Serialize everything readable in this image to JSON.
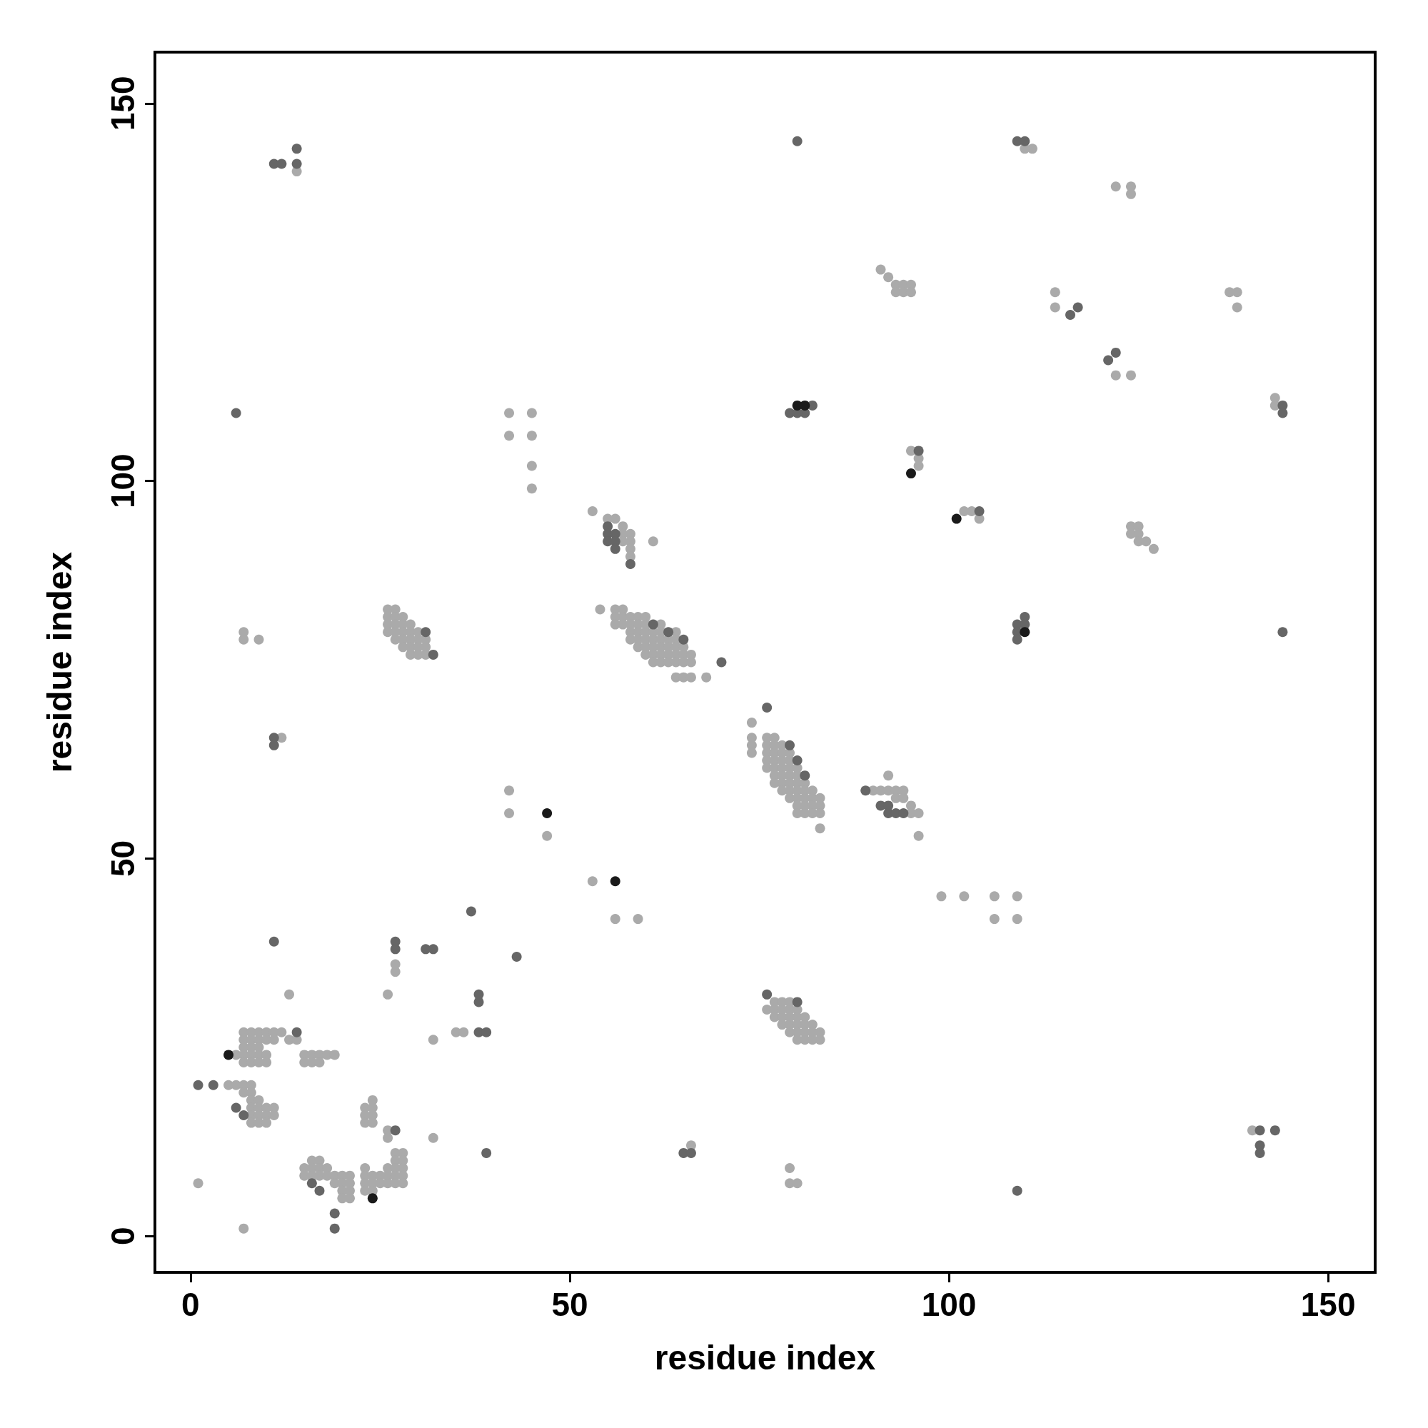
{
  "chart_data": {
    "type": "scatter",
    "xlabel": "residue index",
    "ylabel": "residue index",
    "xlim": [
      -4.7,
      156.2
    ],
    "ylim": [
      -4.8,
      156.8
    ],
    "xticks": [
      0,
      50,
      100,
      150
    ],
    "yticks": [
      0,
      50,
      100,
      150
    ],
    "marker": "circle",
    "series": [
      {
        "color": "#aaaaaa",
        "x": [
          14,
          122,
          124,
          124,
          110,
          111,
          91,
          92,
          93,
          94,
          95,
          93,
          94,
          95,
          114,
          114,
          137,
          138,
          138,
          122,
          124,
          143,
          143,
          7,
          7,
          9,
          12,
          42,
          45,
          42,
          45,
          45,
          45,
          42,
          42,
          47,
          53,
          55,
          56,
          57,
          58,
          58,
          58,
          58,
          57,
          57,
          61,
          54,
          56,
          57,
          56,
          57,
          58,
          59,
          60,
          56,
          57,
          58,
          59,
          60,
          62,
          58,
          59,
          60,
          61,
          62,
          64,
          58,
          59,
          60,
          61,
          62,
          63,
          64,
          59,
          60,
          61,
          62,
          63,
          64,
          65,
          60,
          61,
          62,
          63,
          64,
          65,
          66,
          61,
          62,
          63,
          64,
          65,
          66,
          64,
          65,
          66,
          68,
          26,
          27,
          26,
          27,
          28,
          26,
          27,
          28,
          29,
          26,
          27,
          28,
          29,
          30,
          27,
          28,
          29,
          30,
          31,
          28,
          29,
          30,
          31,
          29,
          30,
          31,
          74,
          74,
          74,
          74,
          76,
          77,
          76,
          77,
          78,
          76,
          77,
          78,
          79,
          76,
          77,
          78,
          79,
          76,
          77,
          78,
          79,
          80,
          77,
          78,
          79,
          80,
          77,
          78,
          79,
          80,
          81,
          78,
          79,
          80,
          81,
          82,
          79,
          80,
          81,
          82,
          83,
          80,
          81,
          82,
          83,
          80,
          81,
          82,
          83,
          83,
          90,
          91,
          92,
          93,
          94,
          92,
          93,
          94,
          95,
          95,
          96,
          96,
          95,
          96,
          96,
          102,
          103,
          104,
          124,
          125,
          124,
          125,
          125,
          126,
          127,
          140,
          79,
          79,
          80,
          66,
          99,
          102,
          106,
          106,
          109,
          109,
          53,
          56,
          59,
          77,
          78,
          79,
          76,
          77,
          78,
          79,
          80,
          77,
          78,
          79,
          80,
          81,
          78,
          79,
          80,
          81,
          82,
          79,
          80,
          81,
          82,
          83,
          80,
          81,
          82,
          83,
          27,
          27,
          13,
          26,
          35,
          36,
          32,
          13,
          14,
          7,
          8,
          9,
          10,
          11,
          12,
          7,
          8,
          9,
          10,
          11,
          7,
          8,
          9,
          6,
          7,
          8,
          9,
          10,
          7,
          8,
          9,
          10,
          15,
          16,
          17,
          18,
          19,
          15,
          16,
          17,
          5,
          6,
          7,
          8,
          7,
          8,
          8,
          9,
          8,
          9,
          10,
          11,
          8,
          9,
          10,
          11,
          8,
          9,
          10,
          24,
          23,
          24,
          23,
          24,
          23,
          24,
          26,
          26,
          32,
          1,
          7,
          16,
          17,
          15,
          16,
          17,
          18,
          15,
          16,
          17,
          18,
          19,
          20,
          21,
          19,
          20,
          21,
          20,
          21,
          20,
          21,
          27,
          28,
          27,
          28,
          23,
          26,
          27,
          28,
          23,
          24,
          25,
          26,
          27,
          28,
          23,
          24,
          25,
          26,
          27,
          28,
          23,
          24
        ],
        "values": [
          141,
          139,
          139,
          138,
          144,
          144,
          128,
          127,
          126,
          126,
          126,
          125,
          125,
          125,
          125,
          123,
          125,
          125,
          123,
          114,
          114,
          111,
          110,
          80,
          79,
          79,
          66,
          109,
          109,
          106,
          106,
          102,
          99,
          59,
          56,
          53,
          96,
          95,
          95,
          94,
          93,
          92,
          91,
          90,
          93,
          92,
          92,
          83,
          83,
          83,
          82,
          82,
          82,
          82,
          82,
          81,
          81,
          81,
          81,
          81,
          81,
          80,
          80,
          80,
          80,
          80,
          80,
          79,
          79,
          79,
          79,
          79,
          79,
          79,
          78,
          78,
          78,
          78,
          78,
          78,
          78,
          77,
          77,
          77,
          77,
          77,
          77,
          77,
          76,
          76,
          76,
          76,
          76,
          76,
          74,
          74,
          74,
          74,
          83,
          83,
          82,
          82,
          82,
          81,
          81,
          81,
          81,
          80,
          80,
          80,
          80,
          80,
          79,
          79,
          79,
          79,
          79,
          78,
          78,
          78,
          78,
          77,
          77,
          77,
          68,
          66,
          65,
          64,
          66,
          66,
          65,
          65,
          65,
          64,
          64,
          64,
          64,
          63,
          63,
          63,
          63,
          62,
          62,
          62,
          62,
          62,
          61,
          61,
          61,
          61,
          60,
          60,
          60,
          60,
          60,
          59,
          59,
          59,
          59,
          59,
          58,
          58,
          58,
          58,
          58,
          57,
          57,
          57,
          57,
          56,
          56,
          56,
          56,
          54,
          59,
          59,
          59,
          59,
          59,
          61,
          58,
          58,
          57,
          56,
          56,
          53,
          104,
          103,
          102,
          96,
          96,
          95,
          94,
          94,
          93,
          93,
          92,
          92,
          91,
          14,
          9,
          7,
          7,
          12,
          45,
          45,
          45,
          42,
          45,
          42,
          47,
          42,
          42,
          31,
          31,
          31,
          30,
          30,
          30,
          30,
          30,
          29,
          29,
          29,
          29,
          29,
          28,
          28,
          28,
          28,
          28,
          27,
          27,
          27,
          27,
          27,
          26,
          26,
          26,
          26,
          36,
          35,
          32,
          32,
          27,
          27,
          26,
          26,
          26,
          27,
          27,
          27,
          27,
          27,
          27,
          26,
          26,
          26,
          26,
          26,
          25,
          25,
          25,
          24,
          24,
          24,
          24,
          24,
          23,
          23,
          23,
          23,
          24,
          24,
          24,
          24,
          24,
          23,
          23,
          23,
          20,
          20,
          20,
          20,
          19,
          19,
          18,
          18,
          17,
          17,
          17,
          17,
          16,
          16,
          16,
          16,
          15,
          15,
          15,
          18,
          17,
          17,
          16,
          16,
          15,
          15,
          14,
          13,
          13,
          7,
          1,
          10,
          10,
          9,
          9,
          9,
          9,
          8,
          8,
          8,
          8,
          8,
          8,
          8,
          7,
          7,
          7,
          6,
          6,
          5,
          5,
          11,
          11,
          10,
          10,
          9,
          9,
          9,
          9,
          8,
          8,
          8,
          8,
          8,
          8,
          7,
          7,
          7,
          7,
          7,
          7,
          6,
          6
        ]
      },
      {
        "color": "#666666",
        "x": [
          11,
          12,
          14,
          14,
          80,
          109,
          110,
          116,
          117,
          121,
          122,
          144,
          144,
          144,
          6,
          11,
          11,
          55,
          55,
          55,
          56,
          56,
          56,
          58,
          61,
          63,
          65,
          70,
          76,
          31,
          32,
          79,
          80,
          81,
          89,
          91,
          92,
          92,
          93,
          94,
          96,
          104,
          109,
          109,
          109,
          110,
          110,
          79,
          82,
          81,
          80,
          141,
          143,
          141,
          141,
          109,
          65,
          66,
          76,
          80,
          37,
          43,
          31,
          32,
          27,
          27,
          11,
          38,
          38,
          38,
          39,
          14,
          1,
          3,
          6,
          7,
          27,
          16,
          17,
          19,
          19,
          39
        ],
        "values": [
          142,
          142,
          144,
          142,
          145,
          145,
          145,
          122,
          123,
          116,
          117,
          110,
          109,
          80,
          109,
          66,
          65,
          94,
          93,
          92,
          93,
          92,
          91,
          89,
          81,
          80,
          79,
          76,
          70,
          80,
          77,
          65,
          63,
          61,
          59,
          57,
          57,
          56,
          56,
          56,
          104,
          96,
          81,
          80,
          79,
          82,
          81,
          109,
          110,
          109,
          109,
          14,
          14,
          12,
          11,
          6,
          11,
          11,
          32,
          31,
          43,
          37,
          38,
          38,
          39,
          38,
          39,
          32,
          31,
          27,
          27,
          27,
          20,
          20,
          17,
          16,
          14,
          7,
          6,
          3,
          1,
          11
        ]
      },
      {
        "color": "#1a1a1a",
        "x": [
          5,
          24,
          47,
          56,
          95,
          101,
          80,
          81,
          110
        ],
        "values": [
          24,
          5,
          56,
          47,
          101,
          95,
          110,
          110,
          80
        ]
      }
    ]
  }
}
